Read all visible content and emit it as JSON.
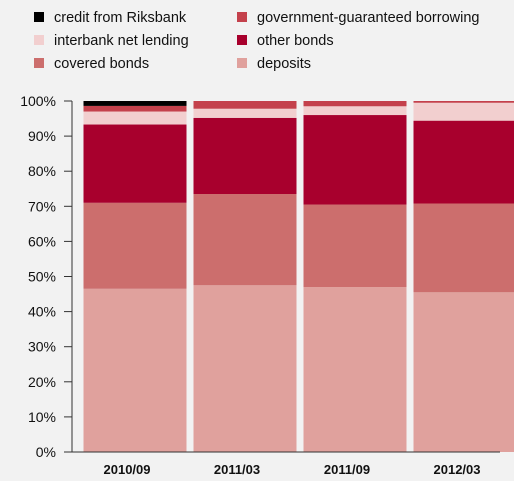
{
  "chart_data": {
    "type": "bar",
    "stacked": true,
    "categories": [
      "2010/09",
      "2011/03",
      "2011/09",
      "2012/03"
    ],
    "series": [
      {
        "name": "deposits",
        "color": "#e0a19d",
        "values": [
          46.5,
          47.5,
          47.0,
          45.5
        ]
      },
      {
        "name": "covered bonds",
        "color": "#cc6e6d",
        "values": [
          24.5,
          26.0,
          23.5,
          25.3
        ]
      },
      {
        "name": "other bonds",
        "color": "#a8002d",
        "values": [
          22.3,
          21.7,
          25.5,
          23.6
        ]
      },
      {
        "name": "interbank net lending",
        "color": "#f2cfcf",
        "values": [
          3.7,
          2.6,
          2.5,
          5.1
        ]
      },
      {
        "name": "government-guaranteed borrowing",
        "color": "#c4414c",
        "values": [
          1.6,
          2.2,
          1.5,
          0.5
        ]
      },
      {
        "name": "credit from Riksbank",
        "color": "#000000",
        "values": [
          1.4,
          0,
          0,
          0
        ]
      }
    ],
    "legend_order": [
      "credit from Riksbank",
      "government-guaranteed borrowing",
      "interbank net lending",
      "other bonds",
      "covered bonds",
      "deposits"
    ],
    "yticks": [
      "0%",
      "10%",
      "20%",
      "30%",
      "40%",
      "50%",
      "60%",
      "70%",
      "80%",
      "90%",
      "100%"
    ],
    "ylim": [
      0,
      100
    ],
    "grid": false,
    "legend_position": "top"
  }
}
